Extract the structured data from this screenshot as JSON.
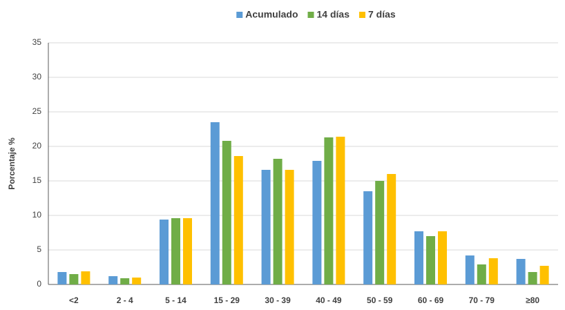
{
  "chart_data": {
    "type": "bar",
    "y_label": "Porcentaje %",
    "categories": [
      "<2",
      "2 - 4",
      "5 - 14",
      "15 - 29",
      "30 - 39",
      "40 - 49",
      "50 - 59",
      "60 - 69",
      "70 - 79",
      "≥80"
    ],
    "series": [
      {
        "name": "Acumulado",
        "color": "#5b9bd5",
        "values": [
          1.8,
          1.2,
          9.4,
          23.5,
          16.6,
          17.9,
          13.5,
          7.7,
          4.2,
          3.7
        ]
      },
      {
        "name": "14 días",
        "color": "#70ad47",
        "values": [
          1.5,
          0.9,
          9.6,
          20.8,
          18.2,
          21.3,
          15.0,
          7.0,
          2.9,
          1.8
        ]
      },
      {
        "name": "7 días",
        "color": "#ffc000",
        "values": [
          1.9,
          1.0,
          9.6,
          18.6,
          16.6,
          21.4,
          16.0,
          7.7,
          3.8,
          2.7
        ]
      }
    ],
    "ylim": [
      0,
      35
    ],
    "yticks": [
      0,
      5,
      10,
      15,
      20,
      25,
      30,
      35
    ],
    "grid": true
  }
}
